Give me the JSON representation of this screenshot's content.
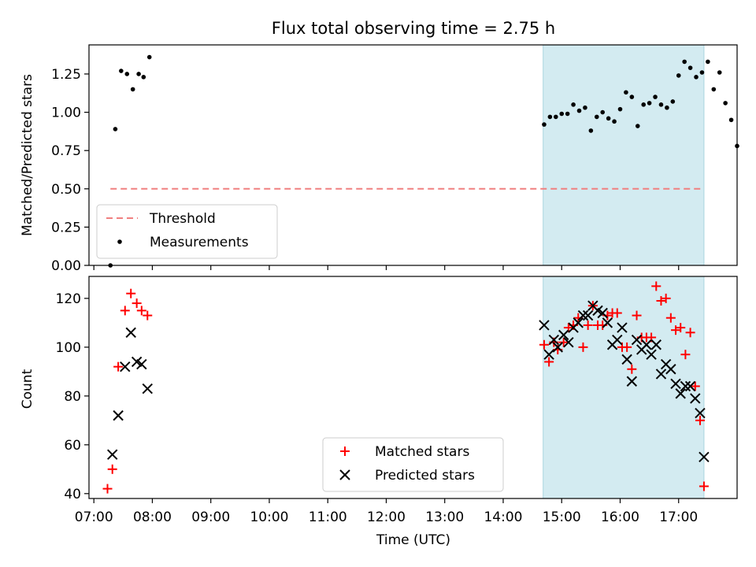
{
  "chart_data": [
    {
      "type": "scatter",
      "title": "Flux total observing time = 2.75 h",
      "ylabel": "Matched/Predicted stars",
      "x_axis": "time (UTC)",
      "xlim": [
        "06:55",
        "18:00"
      ],
      "ylim": [
        0,
        1.44
      ],
      "yticks": [
        0.0,
        0.25,
        0.5,
        0.75,
        1.0,
        1.25
      ],
      "ytick_labels": [
        "0.00",
        "0.25",
        "0.50",
        "0.75",
        "1.00",
        "1.25"
      ],
      "highlight_span": [
        "14:41",
        "17:26"
      ],
      "threshold": {
        "name": "Threshold",
        "value": 0.5,
        "x_range": [
          "07:17",
          "17:26"
        ]
      },
      "legend": {
        "position": "lower-left",
        "entries": [
          "Threshold",
          "Measurements"
        ]
      },
      "series": [
        {
          "name": "Measurements",
          "points": [
            [
              "07:17",
              0.0
            ],
            [
              "07:22",
              0.89
            ],
            [
              "07:28",
              1.27
            ],
            [
              "07:34",
              1.25
            ],
            [
              "07:40",
              1.15
            ],
            [
              "07:46",
              1.25
            ],
            [
              "07:51",
              1.23
            ],
            [
              "07:57",
              1.36
            ],
            [
              "14:42",
              0.92
            ],
            [
              "14:48",
              0.97
            ],
            [
              "14:54",
              0.97
            ],
            [
              "15:00",
              0.99
            ],
            [
              "15:06",
              0.99
            ],
            [
              "15:12",
              1.05
            ],
            [
              "15:18",
              1.01
            ],
            [
              "15:24",
              1.03
            ],
            [
              "15:30",
              0.88
            ],
            [
              "15:36",
              0.97
            ],
            [
              "15:42",
              1.0
            ],
            [
              "15:48",
              0.96
            ],
            [
              "15:54",
              0.94
            ],
            [
              "16:00",
              1.02
            ],
            [
              "16:06",
              1.13
            ],
            [
              "16:12",
              1.1
            ],
            [
              "16:18",
              0.91
            ],
            [
              "16:24",
              1.05
            ],
            [
              "16:30",
              1.06
            ],
            [
              "16:36",
              1.1
            ],
            [
              "16:42",
              1.05
            ],
            [
              "16:48",
              1.03
            ],
            [
              "16:54",
              1.07
            ],
            [
              "17:00",
              1.24
            ],
            [
              "17:06",
              1.33
            ],
            [
              "17:12",
              1.29
            ],
            [
              "17:18",
              1.23
            ],
            [
              "17:24",
              1.26
            ],
            [
              "17:30",
              1.33
            ],
            [
              "17:36",
              1.15
            ],
            [
              "17:42",
              1.26
            ],
            [
              "17:48",
              1.06
            ],
            [
              "17:54",
              0.95
            ],
            [
              "18:00",
              0.78
            ]
          ]
        }
      ]
    },
    {
      "type": "scatter",
      "ylabel": "Count",
      "xlabel": "Time (UTC)",
      "xlim": [
        "06:55",
        "18:00"
      ],
      "ylim": [
        38,
        129
      ],
      "yticks": [
        40,
        60,
        80,
        100,
        120
      ],
      "xticks": [
        "07:00",
        "08:00",
        "09:00",
        "10:00",
        "11:00",
        "12:00",
        "13:00",
        "14:00",
        "15:00",
        "16:00",
        "17:00"
      ],
      "highlight_span": [
        "14:41",
        "17:26"
      ],
      "legend": {
        "position": "lower-center",
        "entries": [
          "Matched stars",
          "Predicted stars"
        ]
      },
      "series": [
        {
          "name": "Matched stars",
          "marker": "plus",
          "color": "#ff0000",
          "points": [
            [
              "07:14",
              42
            ],
            [
              "07:19",
              50
            ],
            [
              "07:25",
              92
            ],
            [
              "07:32",
              115
            ],
            [
              "07:38",
              122
            ],
            [
              "07:44",
              118
            ],
            [
              "07:49",
              115
            ],
            [
              "07:55",
              113
            ],
            [
              "14:42",
              101
            ],
            [
              "14:47",
              94
            ],
            [
              "14:52",
              102
            ],
            [
              "14:56",
              99
            ],
            [
              "15:02",
              102
            ],
            [
              "15:07",
              108
            ],
            [
              "15:12",
              109
            ],
            [
              "15:17",
              112
            ],
            [
              "15:22",
              100
            ],
            [
              "15:27",
              109
            ],
            [
              "15:32",
              117
            ],
            [
              "15:37",
              109
            ],
            [
              "15:42",
              109
            ],
            [
              "15:47",
              113
            ],
            [
              "15:52",
              114
            ],
            [
              "15:57",
              114
            ],
            [
              "16:02",
              100
            ],
            [
              "16:07",
              100
            ],
            [
              "16:12",
              91
            ],
            [
              "16:17",
              113
            ],
            [
              "16:22",
              104
            ],
            [
              "16:27",
              104
            ],
            [
              "16:32",
              104
            ],
            [
              "16:37",
              125
            ],
            [
              "16:42",
              119
            ],
            [
              "16:47",
              120
            ],
            [
              "16:52",
              112
            ],
            [
              "16:57",
              107
            ],
            [
              "17:02",
              108
            ],
            [
              "17:07",
              97
            ],
            [
              "17:12",
              106
            ],
            [
              "17:17",
              84
            ],
            [
              "17:22",
              70
            ],
            [
              "17:26",
              43
            ]
          ]
        },
        {
          "name": "Predicted stars",
          "marker": "x",
          "color": "#000000",
          "points": [
            [
              "07:19",
              56
            ],
            [
              "07:25",
              72
            ],
            [
              "07:32",
              92
            ],
            [
              "07:38",
              106
            ],
            [
              "07:44",
              94
            ],
            [
              "07:49",
              93
            ],
            [
              "07:55",
              83
            ],
            [
              "14:42",
              109
            ],
            [
              "14:47",
              97
            ],
            [
              "14:52",
              103
            ],
            [
              "14:56",
              100
            ],
            [
              "15:02",
              105
            ],
            [
              "15:07",
              102
            ],
            [
              "15:12",
              108
            ],
            [
              "15:17",
              110
            ],
            [
              "15:22",
              113
            ],
            [
              "15:27",
              113
            ],
            [
              "15:32",
              117
            ],
            [
              "15:37",
              115
            ],
            [
              "15:42",
              114
            ],
            [
              "15:47",
              110
            ],
            [
              "15:52",
              101
            ],
            [
              "15:57",
              103
            ],
            [
              "16:02",
              108
            ],
            [
              "16:07",
              95
            ],
            [
              "16:12",
              86
            ],
            [
              "16:17",
              103
            ],
            [
              "16:22",
              99
            ],
            [
              "16:27",
              101
            ],
            [
              "16:32",
              97
            ],
            [
              "16:37",
              101
            ],
            [
              "16:42",
              89
            ],
            [
              "16:47",
              93
            ],
            [
              "16:52",
              91
            ],
            [
              "16:57",
              85
            ],
            [
              "17:02",
              81
            ],
            [
              "17:07",
              84
            ],
            [
              "17:12",
              84
            ],
            [
              "17:17",
              79
            ],
            [
              "17:22",
              73
            ],
            [
              "17:26",
              55
            ]
          ]
        }
      ]
    }
  ],
  "colors": {
    "highlight": "#d3ebf1",
    "highlight_edge": "#a9d5df",
    "threshold": "#f08080",
    "measurements": "#000000",
    "matched": "#ff0000",
    "predicted": "#000000"
  }
}
